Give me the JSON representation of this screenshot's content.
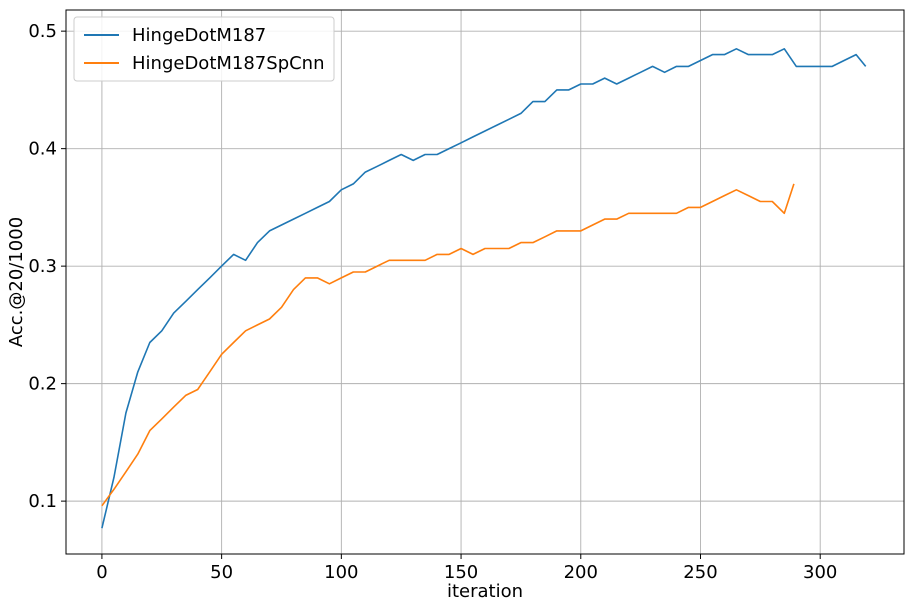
{
  "chart_data": {
    "type": "line",
    "title": "",
    "xlabel": "iteration",
    "ylabel": "Acc.@20/1000",
    "xlim": [
      -15,
      335
    ],
    "ylim": [
      0.055,
      0.518
    ],
    "xticks": [
      0,
      50,
      100,
      150,
      200,
      250,
      300
    ],
    "yticks": [
      0.1,
      0.2,
      0.3,
      0.4,
      0.5
    ],
    "xtick_labels": [
      "0",
      "50",
      "100",
      "150",
      "200",
      "250",
      "300"
    ],
    "ytick_labels": [
      "0.1",
      "0.2",
      "0.3",
      "0.4",
      "0.5"
    ],
    "grid": true,
    "legend_position": "top-left",
    "series": [
      {
        "name": "HingeDotM187",
        "color": "#1f77b4",
        "x": [
          0,
          5,
          10,
          15,
          20,
          25,
          30,
          35,
          40,
          45,
          50,
          55,
          60,
          65,
          70,
          75,
          80,
          85,
          90,
          95,
          100,
          105,
          110,
          115,
          120,
          125,
          130,
          135,
          140,
          145,
          150,
          155,
          160,
          165,
          170,
          175,
          180,
          185,
          190,
          195,
          200,
          205,
          210,
          215,
          220,
          225,
          230,
          235,
          240,
          245,
          250,
          255,
          260,
          265,
          270,
          275,
          280,
          285,
          290,
          295,
          300,
          305,
          310,
          315,
          319
        ],
        "y": [
          0.077,
          0.12,
          0.175,
          0.21,
          0.235,
          0.245,
          0.26,
          0.27,
          0.28,
          0.29,
          0.3,
          0.31,
          0.305,
          0.32,
          0.33,
          0.335,
          0.34,
          0.345,
          0.35,
          0.355,
          0.365,
          0.37,
          0.38,
          0.385,
          0.39,
          0.395,
          0.39,
          0.395,
          0.395,
          0.4,
          0.405,
          0.41,
          0.415,
          0.42,
          0.425,
          0.43,
          0.44,
          0.44,
          0.45,
          0.45,
          0.455,
          0.455,
          0.46,
          0.455,
          0.46,
          0.465,
          0.47,
          0.465,
          0.47,
          0.47,
          0.475,
          0.48,
          0.48,
          0.485,
          0.48,
          0.48,
          0.48,
          0.485,
          0.47,
          0.47,
          0.47,
          0.47,
          0.475,
          0.48,
          0.47
        ]
      },
      {
        "name": "HingeDotM187SpCnn",
        "color": "#ff7f0e",
        "x": [
          0,
          5,
          10,
          15,
          20,
          25,
          30,
          35,
          40,
          45,
          50,
          55,
          60,
          65,
          70,
          75,
          80,
          85,
          90,
          95,
          100,
          105,
          110,
          115,
          120,
          125,
          130,
          135,
          140,
          145,
          150,
          155,
          160,
          165,
          170,
          175,
          180,
          185,
          190,
          195,
          200,
          205,
          210,
          215,
          220,
          225,
          230,
          235,
          240,
          245,
          250,
          255,
          260,
          265,
          270,
          275,
          280,
          285,
          289
        ],
        "y": [
          0.096,
          0.11,
          0.125,
          0.14,
          0.16,
          0.17,
          0.18,
          0.19,
          0.195,
          0.21,
          0.225,
          0.235,
          0.245,
          0.25,
          0.255,
          0.265,
          0.28,
          0.29,
          0.29,
          0.285,
          0.29,
          0.295,
          0.295,
          0.3,
          0.305,
          0.305,
          0.305,
          0.305,
          0.31,
          0.31,
          0.315,
          0.31,
          0.315,
          0.315,
          0.315,
          0.32,
          0.32,
          0.325,
          0.33,
          0.33,
          0.33,
          0.335,
          0.34,
          0.34,
          0.345,
          0.345,
          0.345,
          0.345,
          0.345,
          0.35,
          0.35,
          0.355,
          0.36,
          0.365,
          0.36,
          0.355,
          0.355,
          0.345,
          0.37
        ]
      }
    ]
  }
}
